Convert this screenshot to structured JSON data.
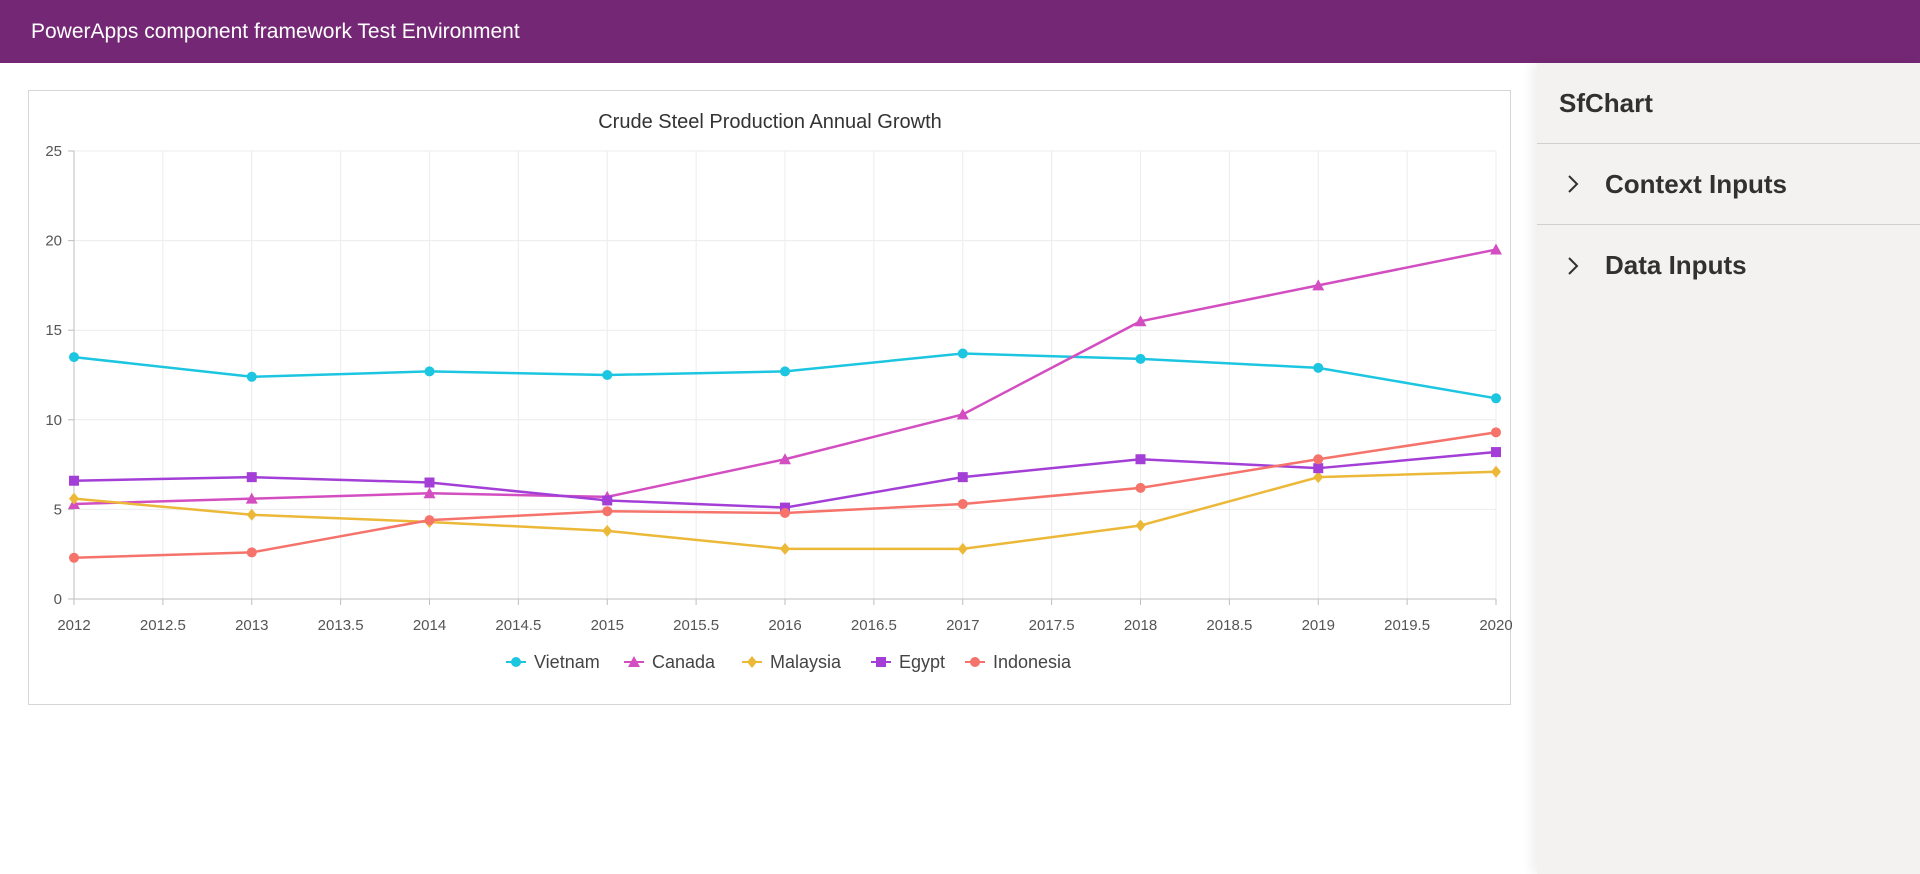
{
  "header": {
    "title": "PowerApps component framework Test Environment"
  },
  "side_panel": {
    "title": "SfChart",
    "sections": [
      {
        "label": "Context Inputs",
        "icon": "chevron-right-icon"
      },
      {
        "label": "Data Inputs",
        "icon": "chevron-right-icon"
      }
    ]
  },
  "chart_data": {
    "type": "line",
    "title": "Crude Steel Production Annual Growth",
    "xlabel": "",
    "ylabel": "",
    "xlim": [
      2012,
      2020
    ],
    "ylim": [
      0,
      25
    ],
    "x_ticks": [
      "2012",
      "2012.5",
      "2013",
      "2013.5",
      "2014",
      "2014.5",
      "2015",
      "2015.5",
      "2016",
      "2016.5",
      "2017",
      "2017.5",
      "2018",
      "2018.5",
      "2019",
      "2019.5",
      "2020"
    ],
    "y_ticks": [
      "0",
      "5",
      "10",
      "15",
      "20",
      "25"
    ],
    "grid": true,
    "legend_position": "bottom",
    "x": [
      2012,
      2013,
      2014,
      2015,
      2016,
      2017,
      2018,
      2019,
      2020
    ],
    "series": [
      {
        "name": "Vietnam",
        "color": "#1cc6e0",
        "marker": "circle",
        "values": [
          13.5,
          12.4,
          12.7,
          12.5,
          12.7,
          13.7,
          13.4,
          12.9,
          11.2
        ]
      },
      {
        "name": "Canada",
        "color": "#d34ec0",
        "marker": "triangle",
        "values": [
          5.3,
          5.6,
          5.9,
          5.7,
          7.8,
          10.3,
          15.5,
          17.5,
          19.5
        ]
      },
      {
        "name": "Malaysia",
        "color": "#ecb838",
        "marker": "diamond",
        "values": [
          5.6,
          4.7,
          4.3,
          3.8,
          2.8,
          2.8,
          4.1,
          6.8,
          7.1
        ]
      },
      {
        "name": "Egypt",
        "color": "#a33fd6",
        "marker": "square",
        "values": [
          6.6,
          6.8,
          6.5,
          5.5,
          5.1,
          6.8,
          7.8,
          7.3,
          8.2
        ]
      },
      {
        "name": "Indonesia",
        "color": "#f5736a",
        "marker": "circle",
        "values": [
          2.3,
          2.6,
          4.4,
          4.9,
          4.8,
          5.3,
          6.2,
          7.8,
          9.3
        ]
      }
    ]
  }
}
